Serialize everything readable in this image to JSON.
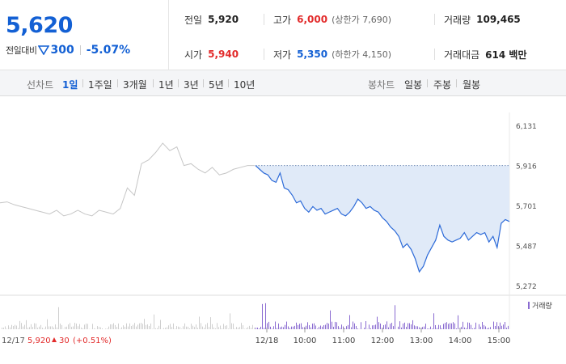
{
  "header": {
    "current_price": "5,620",
    "change_label": "전일대비",
    "change_value": "300",
    "change_direction": "down",
    "change_pct": "-5.07%",
    "stats": {
      "prev_close": {
        "label": "전일",
        "value": "5,920"
      },
      "high": {
        "label": "고가",
        "value": "6,000",
        "sub": "(상한가 7,690)"
      },
      "volume": {
        "label": "거래량",
        "value": "109,465"
      },
      "open": {
        "label": "시가",
        "value": "5,940"
      },
      "low": {
        "label": "저가",
        "value": "5,350",
        "sub": "(하한가 4,150)"
      },
      "trade_amount": {
        "label": "거래대금",
        "value": "614 백만"
      }
    }
  },
  "toolbar": {
    "line_label": "선차트",
    "periods": [
      "1일",
      "1주일",
      "3개월",
      "1년",
      "3년",
      "5년",
      "10년"
    ],
    "active_period": "1일",
    "candle_label": "봉차트",
    "candles": [
      "일봉",
      "주봉",
      "월봉"
    ]
  },
  "chart_data": {
    "type": "line",
    "y_ticks": [
      "6,131",
      "5,916",
      "5,701",
      "5,487",
      "5,272"
    ],
    "ylim": [
      5272,
      6131
    ],
    "x_ticks": [
      "12/18",
      "10:00",
      "11:00",
      "12:00",
      "13:00",
      "14:00",
      "15:00"
    ],
    "prev_day_label": "12/17",
    "prev_day_close": "5,920",
    "prev_day_change": "30",
    "prev_day_change_pct": "(+0.51%)",
    "reference_price": 5920,
    "volume_legend": "거래량",
    "series": [
      {
        "values": [
          5720,
          5725,
          5710,
          5700,
          5690,
          5680,
          5670,
          5660,
          5680,
          5650,
          5660,
          5680,
          5660,
          5650,
          5680,
          5670,
          5660,
          5690,
          5800,
          5760,
          5930,
          5950,
          5990,
          6040,
          6000,
          6020,
          5920,
          5930,
          5900,
          5880,
          5910,
          5870,
          5880,
          5900,
          5910,
          5920,
          5920
        ],
        "color": "#c6c6c6"
      },
      {
        "values": [
          5920,
          5900,
          5880,
          5870,
          5840,
          5830,
          5880,
          5800,
          5790,
          5760,
          5720,
          5730,
          5690,
          5670,
          5700,
          5680,
          5690,
          5660,
          5670,
          5680,
          5690,
          5660,
          5650,
          5670,
          5700,
          5740,
          5720,
          5690,
          5700,
          5680,
          5670,
          5640,
          5620,
          5590,
          5570,
          5540,
          5480,
          5500,
          5470,
          5420,
          5350,
          5380,
          5440,
          5480,
          5520,
          5600,
          5540,
          5520,
          5510,
          5520,
          5530,
          5560,
          5520,
          5540,
          5560,
          5550,
          5560,
          5510,
          5540,
          5480,
          5610,
          5630,
          5620
        ],
        "color": "#2c6ad8"
      }
    ]
  }
}
